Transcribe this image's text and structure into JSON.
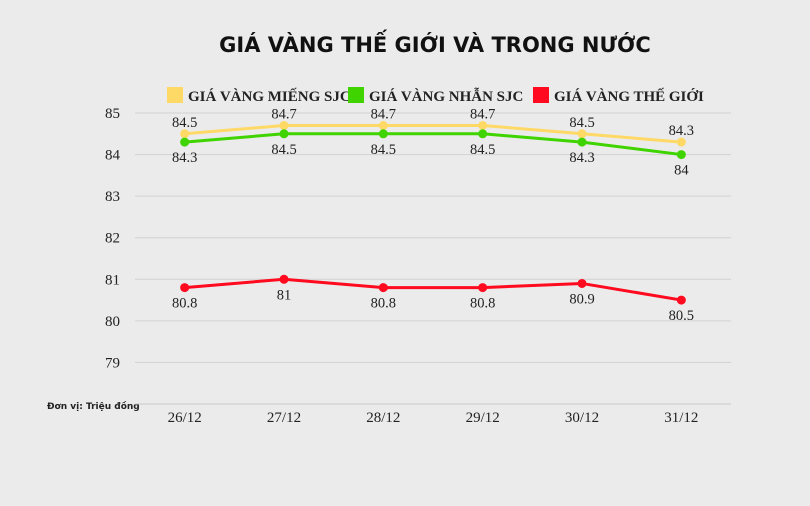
{
  "chart_data": {
    "type": "line",
    "title": "GIÁ VÀNG THẾ GIỚI VÀ TRONG NƯỚC",
    "unit_label": "Đơn vị: Triệu đồng",
    "categories": [
      "26/12",
      "27/12",
      "28/12",
      "29/12",
      "30/12",
      "31/12"
    ],
    "ylim": [
      78,
      85
    ],
    "yticks": [
      79,
      80,
      81,
      82,
      83,
      84,
      85
    ],
    "grid": true,
    "legend_position": "top",
    "series": [
      {
        "name": "GIÁ VÀNG MIẾNG SJC",
        "color": "#ffd966",
        "values": [
          84.5,
          84.7,
          84.7,
          84.7,
          84.5,
          84.3
        ],
        "label_pos": "above"
      },
      {
        "name": "GIÁ VÀNG NHẪN SJC",
        "color": "#3fd400",
        "values": [
          84.3,
          84.5,
          84.5,
          84.5,
          84.3,
          84
        ],
        "label_pos": "below"
      },
      {
        "name": "GIÁ VÀNG THẾ GIỚI",
        "color": "#ff0a1e",
        "values": [
          80.8,
          81,
          80.8,
          80.8,
          80.9,
          80.5
        ],
        "label_pos": "below"
      }
    ]
  }
}
